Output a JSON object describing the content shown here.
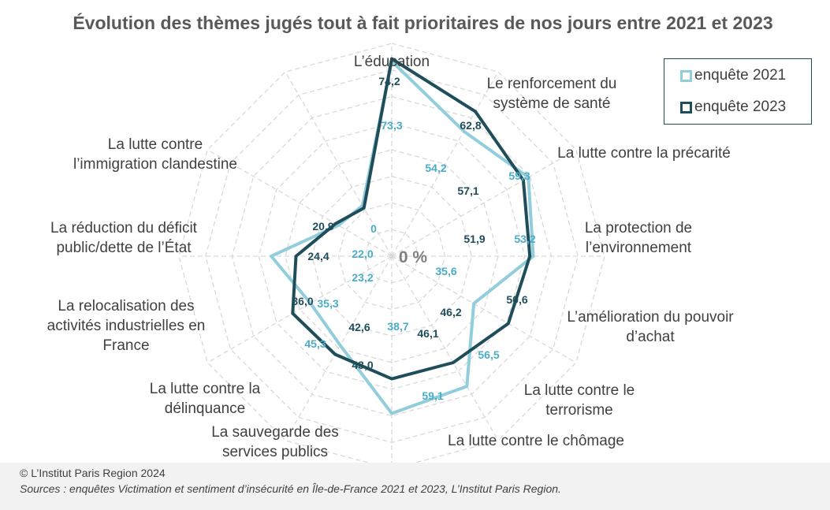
{
  "title": "Évolution des thèmes jugés tout à fait prioritaires de nos jours entre 2021 et 2023",
  "chart_data": {
    "type": "radar",
    "title": "Évolution des thèmes jugés tout à fait prioritaires de nos jours entre 2021 et 2023",
    "categories": [
      [
        "L’éducation"
      ],
      [
        "Le renforcement du",
        "système de santé"
      ],
      [
        "La lutte contre la précarité"
      ],
      [
        "La protection de",
        "l’environnement"
      ],
      [
        "L’amélioration du pouvoir",
        "d’achat"
      ],
      [
        "La lutte contre le",
        "terrorisme"
      ],
      [
        "La lutte contre le chômage"
      ],
      [
        "La sauvegarde des",
        "services publics"
      ],
      [
        "La lutte contre la",
        "délinquance"
      ],
      [
        "La relocalisation des",
        "activités industrielles en",
        "France"
      ],
      [
        "La réduction du déficit",
        "public/dette de l’État"
      ],
      [
        "La lutte contre",
        "l’immigration clandestine"
      ]
    ],
    "series": [
      {
        "name": "enquête 2021",
        "color": "#92cddc",
        "values": [
          73.3,
          54.2,
          59.3,
          53.2,
          35.6,
          56.5,
          59.1,
          38.7,
          35.3,
          45.3,
          23.2,
          22.0
        ],
        "labels": [
          "73,3",
          "54,2",
          "59,3",
          "53,2",
          "35,6",
          "56,5",
          "59,1",
          "38,7",
          "35,3",
          "45,3",
          "23,2",
          "22,0"
        ]
      },
      {
        "name": "enquête 2023",
        "color": "#1f4e5a",
        "values": [
          74.2,
          62.8,
          57.1,
          51.9,
          50.6,
          46.2,
          46.1,
          42.6,
          43.0,
          36.0,
          24.4,
          20.9
        ],
        "labels": [
          "74,2",
          "62,8",
          "57,1",
          "51,9",
          "50,6",
          "46,2",
          "46,1",
          "42,6",
          "43,0",
          "36,0",
          "24,4",
          "20,9"
        ]
      }
    ],
    "extra_labels": [
      "0"
    ],
    "center_label": "0 %",
    "rmax": 80,
    "rings": [
      10,
      20,
      30,
      40,
      50,
      60,
      70,
      80
    ],
    "legend": "top-right"
  },
  "legend": {
    "item_2021": "enquête 2021",
    "item_2023": "enquête 2023"
  },
  "footer": {
    "copyright": "© L’Institut Paris Region 2024",
    "sources": "Sources : enquêtes Victimation et sentiment d’insécurité en Île-de-France 2021 et 2023, L’Institut Paris Region."
  }
}
